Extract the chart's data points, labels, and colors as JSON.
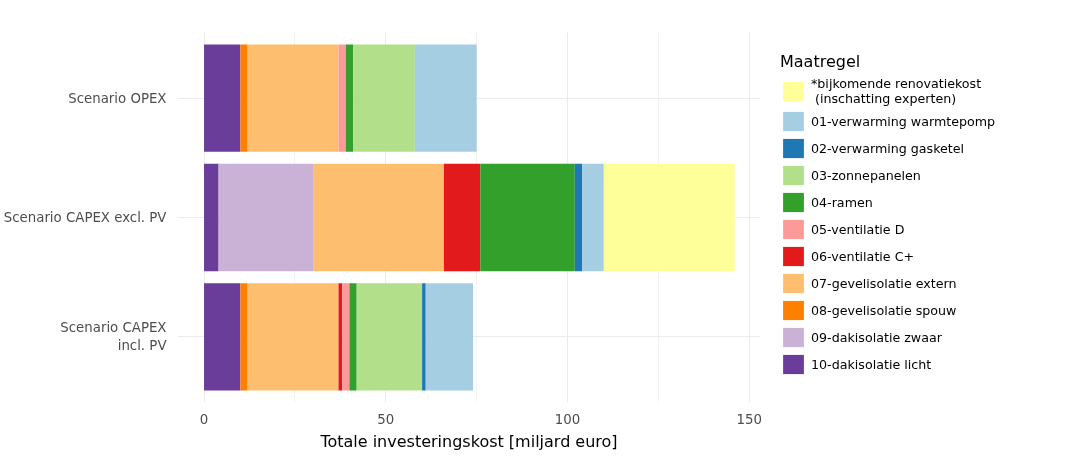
{
  "chart_data": {
    "type": "bar",
    "orientation": "horizontal",
    "stacked": true,
    "categories": [
      "Scenario OPEX",
      "Scenario CAPEX excl. PV",
      "Scenario CAPEX\nincl. PV"
    ],
    "xlabel": "Totale investeringskost [miljard euro]",
    "legend_title": "Maatregel",
    "xlim": [
      -7.3,
      153.1
    ],
    "xticks": [
      0,
      50,
      100,
      150
    ],
    "grid": true,
    "legend": "right",
    "series": [
      {
        "name": "10-dakisolatie licht",
        "color": "#6a3d9a",
        "values": [
          10,
          4,
          10
        ]
      },
      {
        "name": "09-dakisolatie zwaar",
        "color": "#cab2d6",
        "values": [
          null,
          26,
          null
        ]
      },
      {
        "name": "08-gevelisolatie spouw",
        "color": "#ff7f00",
        "values": [
          2,
          null,
          2
        ]
      },
      {
        "name": "07-gevelisolatie extern",
        "color": "#fdbf6f",
        "values": [
          25,
          36,
          25
        ]
      },
      {
        "name": "06-ventilatie C+",
        "color": "#e31a1c",
        "values": [
          null,
          10,
          1
        ]
      },
      {
        "name": "05-ventilatie D",
        "color": "#fb9a99",
        "values": [
          2,
          null,
          2
        ]
      },
      {
        "name": "04-ramen",
        "color": "#33a02c",
        "values": [
          2,
          26,
          2
        ]
      },
      {
        "name": "03-zonnepanelen",
        "color": "#b2df8a",
        "values": [
          17,
          null,
          18
        ]
      },
      {
        "name": "02-verwarming gasketel",
        "color": "#1f78b4",
        "values": [
          null,
          2,
          1
        ]
      },
      {
        "name": "01-verwarming warmtepomp",
        "color": "#a6cee3",
        "values": [
          17,
          6,
          13
        ]
      },
      {
        "name": "*bijkomende renovatiekost\n (inschatting experten)",
        "color": "#ffff99",
        "values": [
          null,
          36,
          null
        ]
      }
    ]
  }
}
